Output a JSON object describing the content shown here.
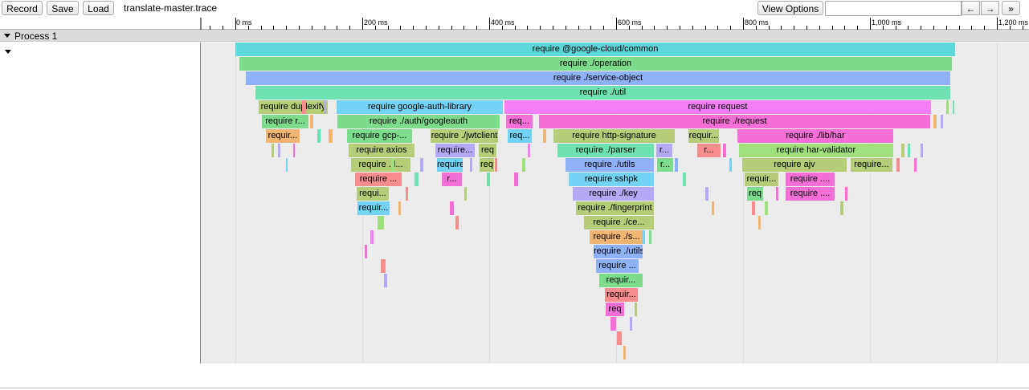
{
  "toolbar": {
    "record_label": "Record",
    "save_label": "Save",
    "load_label": "Load",
    "filename": "translate-master.trace",
    "view_options_label": "View Options",
    "search_value": "",
    "prev_label": "←",
    "next_label": "→",
    "more_label": "»"
  },
  "ruler": {
    "ticks": [
      "0 ms",
      "200 ms",
      "400 ms",
      "600 ms",
      "800 ms",
      "1,000 ms",
      "1,200 ms"
    ]
  },
  "process": {
    "label": "Process 1"
  },
  "colors": {
    "track_bg": "#ececec",
    "cyan": "#5fd8dc",
    "green": "#7ddc8c",
    "blue": "#8fb1f7",
    "teal": "#6ee2b0",
    "olive": "#b5cc78",
    "magenta": "#f37ef5",
    "orange": "#f0b572",
    "salmon": "#f78d8d",
    "lavender": "#b3a9f5",
    "lime": "#9ee07c",
    "pink": "#f56fd7",
    "skyblue": "#74d3f4"
  },
  "flame": {
    "labels": [
      "require @google-cloud/common",
      "require ./operation",
      "require ./service-object",
      "require ./util",
      "require duplexify",
      "require google-auth-library",
      "require request",
      "require r...",
      "require ./auth/googleauth",
      "req...",
      "require ./request",
      "requir...",
      "require gcp-...",
      "require ./jwtclient",
      "req...",
      "require http-signature",
      "requir...",
      "require ./lib/har",
      "require axios",
      "require...",
      "req",
      "require ./parser",
      "r...",
      "r...",
      "require har-validator",
      "require ./l...",
      "require...",
      "req",
      "require ./utils",
      "r...",
      "require ajv",
      "require...",
      "require ...",
      "r...",
      "require sshpk",
      "requir...",
      "require ....",
      "requi...",
      "require ./key",
      "req",
      "require ....",
      "requir...",
      "require ./fingerprint",
      "require ./ce...",
      "require ./s...",
      "require ./utils",
      "require ...",
      "requir...",
      "requir...",
      "req"
    ]
  }
}
